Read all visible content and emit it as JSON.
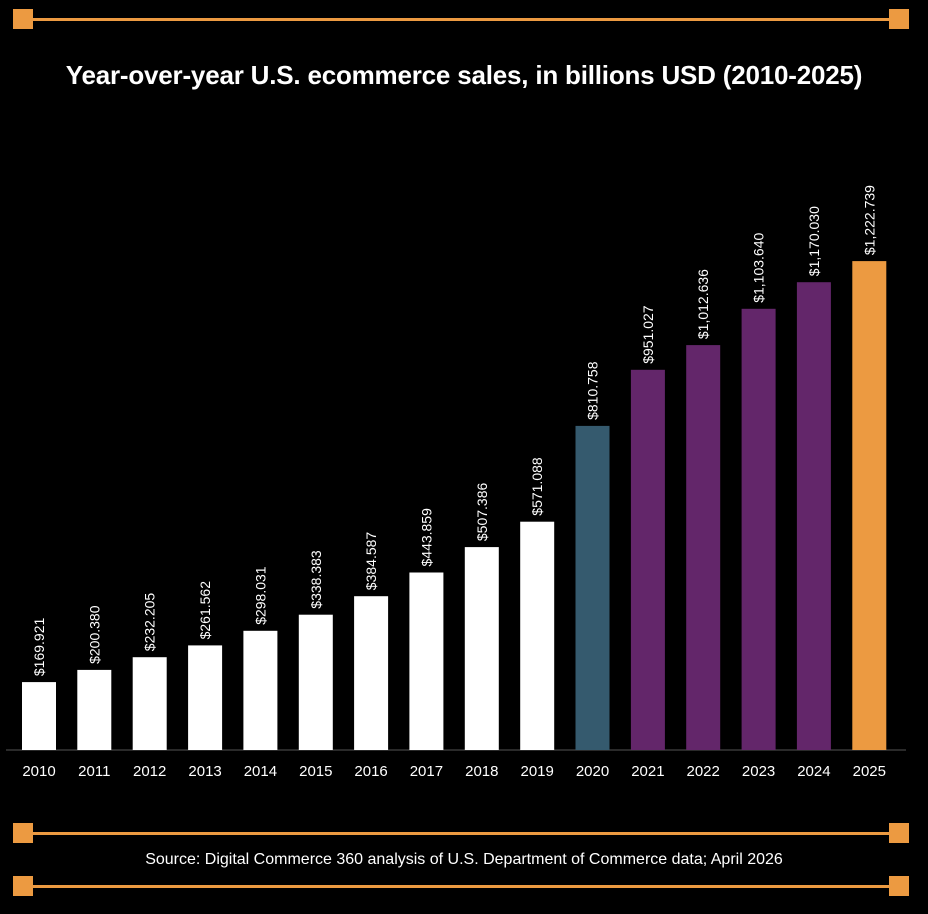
{
  "title": "Year-over-year U.S. ecommerce sales, in billions USD (2010-2025)",
  "source": "Source: Digital Commerce 360 analysis of U.S. Department of Commerce data; April 2026",
  "colors": {
    "background": "#000000",
    "accent": "#ec9a41",
    "default_bar": "#ffffff",
    "bar_2020": "#355a6e",
    "bar_2021_2024": "#63266a",
    "bar_2025": "#ec9a41",
    "text": "#ffffff",
    "axis": "#555555"
  },
  "chart_data": {
    "type": "bar",
    "title": "Year-over-year U.S. ecommerce sales, in billions USD (2010-2025)",
    "xlabel": "",
    "ylabel": "",
    "ylim": [
      0,
      1400
    ],
    "grid": false,
    "legend": "none",
    "categories": [
      "2010",
      "2011",
      "2012",
      "2013",
      "2014",
      "2015",
      "2016",
      "2017",
      "2018",
      "2019",
      "2020",
      "2021",
      "2022",
      "2023",
      "2024",
      "2025"
    ],
    "values": [
      169.921,
      200.38,
      232.205,
      261.562,
      298.031,
      338.383,
      384.587,
      443.859,
      507.386,
      571.088,
      810.758,
      951.027,
      1012.636,
      1103.64,
      1170.03,
      1222.739
    ],
    "labels": [
      "$169.921",
      "$200.380",
      "$232.205",
      "$261.562",
      "$298.031",
      "$338.383",
      "$384.587",
      "$443.859",
      "$507.386",
      "$571.088",
      "$810.758",
      "$951.027",
      "$1,012.636",
      "$1,103.640",
      "$1,170.030",
      "$1,222.739"
    ],
    "bar_colors": [
      "#ffffff",
      "#ffffff",
      "#ffffff",
      "#ffffff",
      "#ffffff",
      "#ffffff",
      "#ffffff",
      "#ffffff",
      "#ffffff",
      "#ffffff",
      "#355a6e",
      "#63266a",
      "#63266a",
      "#63266a",
      "#63266a",
      "#ec9a41"
    ]
  }
}
